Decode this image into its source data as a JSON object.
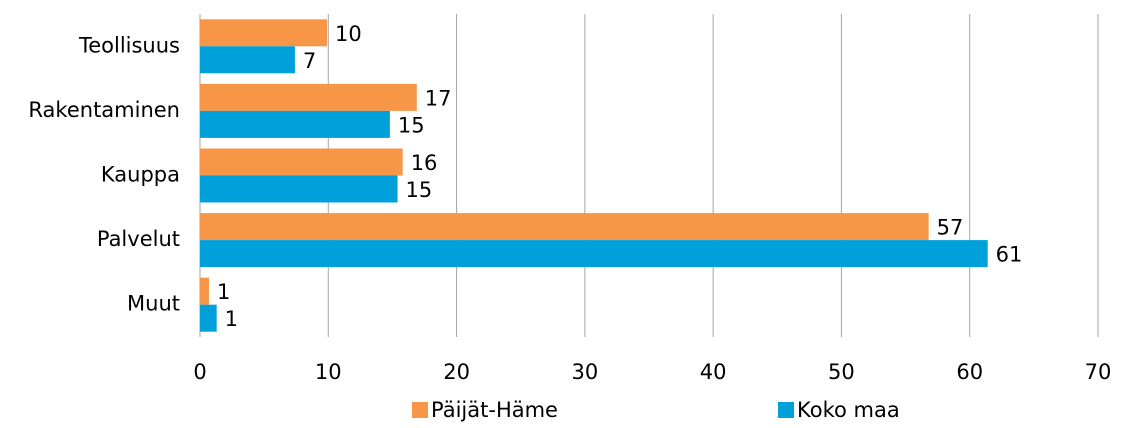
{
  "chart_data": {
    "type": "hbar",
    "categories": [
      "Teollisuus",
      "Rakentaminen",
      "Kauppa",
      "Palvelut",
      "Muut"
    ],
    "series": [
      {
        "name": "Päijät-Häme",
        "color": "#f79646",
        "values": [
          9.9,
          16.9,
          15.8,
          56.8,
          0.7
        ],
        "value_labels": [
          "10",
          "17",
          "16",
          "57",
          "1"
        ]
      },
      {
        "name": "Koko maa",
        "color": "#00a0da",
        "values": [
          7.4,
          14.8,
          15.4,
          61.4,
          1.3
        ],
        "value_labels": [
          "7",
          "15",
          "15",
          "61",
          "1"
        ]
      }
    ],
    "xlim": [
      0,
      70
    ],
    "xticks": [
      0,
      10,
      20,
      30,
      40,
      50,
      60,
      70
    ],
    "grid": true,
    "legend": "bottom"
  }
}
